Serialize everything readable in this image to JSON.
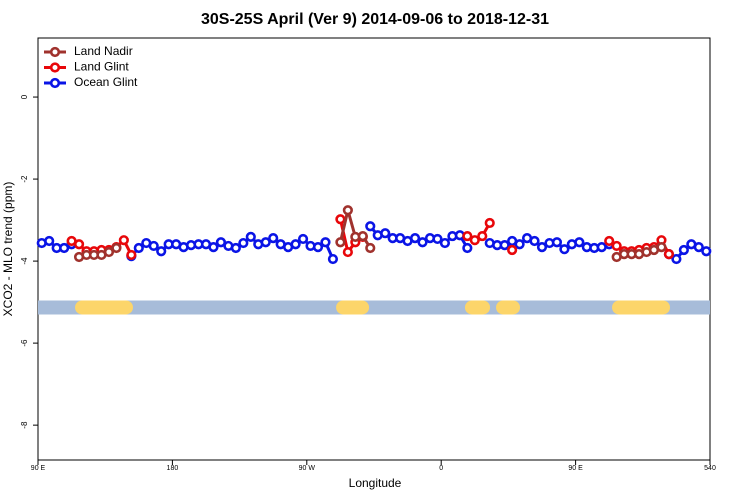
{
  "chart_data": {
    "type": "line",
    "title": "30S-25S April (Ver 9)   2014-09-06 to 2018-12-31",
    "x_label": "Longitude",
    "y_label": "XCO2 - MLO trend (ppm)",
    "xlim": [
      90,
      540
    ],
    "ylim": [
      -8.85,
      1.44
    ],
    "xticks": [
      {
        "value": 90,
        "label": "90 E"
      },
      180,
      {
        "value": 270,
        "label": "90 W"
      },
      {
        "value": 360,
        "label": "0"
      },
      {
        "value": 450,
        "label": "90 E"
      },
      540
    ],
    "yticks": [
      0,
      -2,
      -4,
      -6,
      -8
    ],
    "legend": "top-left",
    "x": [
      92.5,
      97.5,
      102.5,
      107.5,
      112.5,
      117.5,
      122.5,
      127.5,
      132.5,
      137.5,
      142.5,
      147.5,
      152.5,
      157.5,
      162.5,
      167.5,
      172.5,
      177.5,
      182.5,
      187.5,
      192.5,
      197.5,
      202.5,
      207.5,
      212.5,
      217.5,
      222.5,
      227.5,
      232.5,
      237.5,
      242.5,
      247.5,
      252.5,
      257.5,
      262.5,
      267.5,
      272.5,
      277.5,
      282.5,
      287.5,
      292.5,
      297.5,
      302.5,
      307.5,
      312.5,
      317.5,
      322.5,
      327.5,
      332.5,
      337.5,
      342.5,
      347.5,
      352.5,
      357.5,
      362.5,
      367.5,
      372.5,
      377.5,
      382.5,
      387.5,
      392.5,
      397.5,
      402.5,
      407.5,
      412.5,
      417.5,
      422.5,
      427.5,
      432.5,
      437.5,
      442.5,
      447.5,
      452.5,
      457.5,
      462.5,
      467.5,
      472.5,
      477.5,
      482.5,
      487.5,
      492.5,
      497.5,
      502.5,
      507.5,
      512.5,
      517.5,
      522.5,
      527.5,
      532.5,
      537.5
    ],
    "series": [
      {
        "name": "Land Nadir",
        "color": "#a0322d",
        "values": [
          null,
          null,
          null,
          null,
          null,
          -3.9,
          -3.85,
          -3.85,
          -3.85,
          -3.78,
          -3.68,
          null,
          null,
          null,
          null,
          null,
          null,
          null,
          null,
          null,
          null,
          null,
          null,
          null,
          null,
          null,
          null,
          null,
          null,
          null,
          null,
          null,
          null,
          null,
          null,
          null,
          null,
          null,
          null,
          null,
          -3.54,
          -2.76,
          -3.41,
          -3.39,
          -3.68,
          null,
          null,
          null,
          null,
          null,
          null,
          null,
          null,
          null,
          null,
          null,
          null,
          null,
          null,
          null,
          null,
          null,
          null,
          null,
          null,
          null,
          null,
          null,
          null,
          null,
          null,
          null,
          null,
          null,
          null,
          null,
          null,
          -3.9,
          -3.83,
          -3.83,
          -3.83,
          -3.78,
          -3.73,
          -3.66,
          null,
          null,
          null,
          null,
          null,
          null
        ]
      },
      {
        "name": "Land Glint",
        "color": "#e8070a",
        "values": [
          null,
          null,
          null,
          null,
          -3.51,
          -3.59,
          -3.76,
          -3.76,
          -3.73,
          -3.73,
          -3.66,
          -3.49,
          -3.85,
          null,
          null,
          null,
          null,
          null,
          null,
          null,
          null,
          null,
          null,
          null,
          null,
          null,
          null,
          null,
          null,
          null,
          null,
          null,
          null,
          null,
          null,
          null,
          null,
          null,
          null,
          null,
          -2.98,
          -3.78,
          -3.54,
          -3.41,
          null,
          null,
          null,
          null,
          null,
          null,
          null,
          null,
          null,
          null,
          null,
          null,
          null,
          -3.39,
          -3.49,
          -3.39,
          -3.07,
          null,
          null,
          -3.73,
          null,
          null,
          null,
          null,
          null,
          null,
          null,
          null,
          null,
          null,
          null,
          null,
          -3.51,
          -3.63,
          -3.76,
          -3.76,
          -3.73,
          -3.68,
          -3.66,
          -3.49,
          -3.83,
          null,
          null,
          null,
          null,
          null
        ]
      },
      {
        "name": "Ocean Glint",
        "color": "#0a14e6",
        "values": [
          -3.56,
          -3.51,
          -3.68,
          -3.68,
          -3.59,
          null,
          null,
          null,
          null,
          null,
          null,
          null,
          -3.88,
          -3.68,
          -3.56,
          -3.63,
          -3.76,
          -3.59,
          -3.59,
          -3.66,
          -3.61,
          -3.59,
          -3.59,
          -3.66,
          -3.54,
          -3.63,
          -3.68,
          -3.56,
          -3.41,
          -3.59,
          -3.54,
          -3.44,
          -3.59,
          -3.66,
          -3.59,
          -3.46,
          -3.63,
          -3.66,
          -3.54,
          -3.95,
          null,
          null,
          null,
          null,
          -3.15,
          -3.37,
          -3.32,
          -3.44,
          -3.44,
          -3.51,
          -3.44,
          -3.54,
          -3.44,
          -3.46,
          -3.56,
          -3.39,
          -3.37,
          -3.68,
          null,
          null,
          -3.56,
          -3.61,
          -3.61,
          -3.51,
          -3.59,
          -3.44,
          -3.51,
          -3.66,
          -3.56,
          -3.54,
          -3.71,
          -3.59,
          -3.54,
          -3.66,
          -3.68,
          -3.66,
          -3.59,
          null,
          null,
          null,
          null,
          null,
          null,
          null,
          -3.83,
          -3.95,
          -3.73,
          -3.59,
          -3.66,
          -3.76
        ]
      }
    ],
    "surface_band": {
      "y": -5.13,
      "ocean_color": "#a7bcd9",
      "land_color": "#fcd56a",
      "land_segments": [
        [
          114.8,
          153.6
        ],
        [
          289.6,
          311.7
        ],
        [
          375.9,
          392.7
        ],
        [
          403.4,
          406.1
        ],
        [
          474.4,
          513.2
        ]
      ]
    }
  }
}
